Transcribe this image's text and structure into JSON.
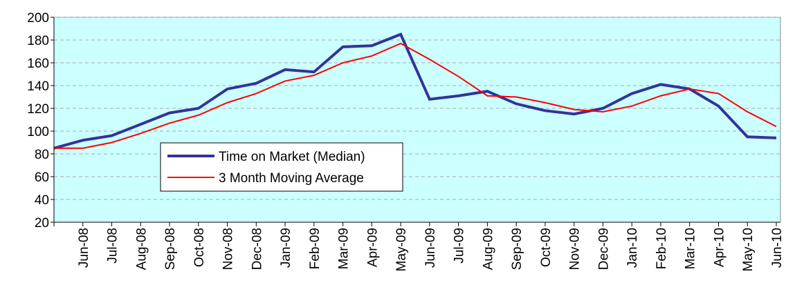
{
  "chart_data": {
    "type": "line",
    "categories": [
      null,
      "Jun-08",
      "Jul-08",
      "Aug-08",
      "Sep-08",
      "Oct-08",
      "Nov-08",
      "Dec-08",
      "Jan-09",
      "Feb-09",
      "Mar-09",
      "Apr-09",
      "May-09",
      "Jun-09",
      "Jul-09",
      "Aug-09",
      "Sep-09",
      "Oct-09",
      "Nov-09",
      "Dec-09",
      "Jan-10",
      "Feb-10",
      "Mar-10",
      "Apr-10",
      "May-10",
      "Jun-10"
    ],
    "series": [
      {
        "name": "Time on Market (Median)",
        "color": "#333399",
        "values": [
          85,
          92,
          96,
          106,
          116,
          120,
          137,
          142,
          154,
          152,
          174,
          175,
          185,
          128,
          131,
          135,
          124,
          118,
          115,
          120,
          133,
          141,
          137,
          122,
          95,
          94
        ]
      },
      {
        "name": "3 Month Moving Average",
        "color": "#ff0000",
        "values": [
          85,
          85,
          90,
          98,
          107,
          114,
          125,
          133,
          144,
          149,
          160,
          166,
          177,
          163,
          148,
          131,
          130,
          125,
          119,
          117,
          122,
          131,
          137,
          133,
          117,
          104
        ]
      }
    ],
    "ylim": [
      20,
      200
    ],
    "yticks": [
      20,
      40,
      60,
      80,
      100,
      120,
      140,
      160,
      180,
      200
    ],
    "grid": true,
    "background": "#ccffff"
  }
}
